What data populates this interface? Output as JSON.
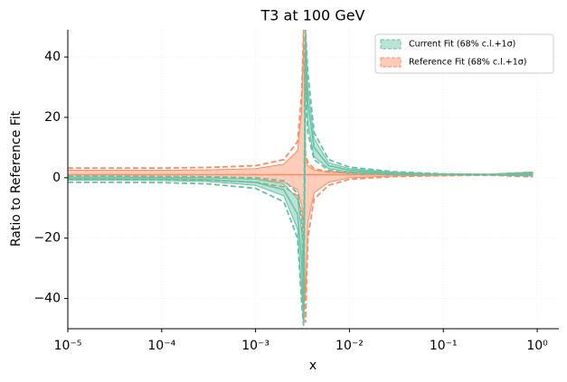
{
  "chart_data": {
    "type": "band-line",
    "title": "T3 at 100 GeV",
    "x_label": "x",
    "y_label": "Ratio to Reference Fit",
    "log_x": true,
    "grid": true,
    "legend": "upper right",
    "x": [
      1e-05,
      3e-05,
      0.0001,
      0.0003,
      0.001,
      0.002,
      0.0028,
      0.0031,
      0.00325,
      0.0034,
      0.0036,
      0.0042,
      0.006,
      0.01,
      0.03,
      0.1,
      0.3,
      0.9
    ],
    "xlim": [
      1e-05,
      1.7
    ],
    "xticks": [
      {
        "value": 1e-05,
        "label": "10⁻⁵"
      },
      {
        "value": 0.0001,
        "label": "10⁻⁴"
      },
      {
        "value": 0.001,
        "label": "10⁻³"
      },
      {
        "value": 0.01,
        "label": "10⁻²"
      },
      {
        "value": 0.1,
        "label": "10⁻¹"
      },
      {
        "value": 1,
        "label": "10⁰"
      }
    ],
    "ylim": [
      -50,
      49
    ],
    "yticks": [
      {
        "value": -40,
        "label": "−40"
      },
      {
        "value": -20,
        "label": "−20"
      },
      0,
      20,
      40
    ],
    "series": [
      {
        "name": "Reference Fit (68% c.l.+1σ)",
        "color": "#fc8d62",
        "central": [
          1,
          1,
          1,
          1,
          1,
          1,
          1,
          1,
          1,
          1,
          1,
          1,
          1,
          1,
          1,
          1,
          1,
          1
        ],
        "band_upper": [
          2.5,
          2.5,
          2.5,
          2.6,
          3,
          4.5,
          9,
          22,
          48,
          6,
          4,
          2.5,
          1.8,
          1.5,
          1.2,
          1.1,
          1.05,
          1.5
        ],
        "band_lower": [
          0.2,
          0.2,
          0.1,
          0,
          -0.5,
          -1.5,
          -4,
          -9,
          -15,
          -40,
          -15,
          -5,
          -1.5,
          0,
          0.6,
          0.8,
          0.9,
          0.5
        ],
        "sigma_upper": [
          3.2,
          3.2,
          3.2,
          3.4,
          4,
          6,
          12,
          28,
          49,
          8,
          5,
          3,
          2,
          1.7,
          1.3,
          1.15,
          1.1,
          1.8
        ],
        "sigma_lower": [
          -0.5,
          -0.5,
          -0.6,
          -0.8,
          -1.5,
          -3,
          -6,
          -12,
          -20,
          -48,
          -20,
          -7,
          -2.5,
          -0.5,
          0.4,
          0.7,
          0.85,
          0.3
        ]
      },
      {
        "name": "Current Fit (68% c.l.+1σ)",
        "color": "#66c2a5",
        "central": [
          -0.3,
          -0.3,
          -0.4,
          -0.6,
          -1.5,
          -4,
          -12,
          -28,
          -48,
          45,
          25,
          10,
          4,
          2.5,
          1.5,
          1.15,
          1.05,
          1.2
        ],
        "band_upper": [
          0.2,
          0.2,
          0.1,
          0,
          -0.5,
          -2,
          -7,
          -18,
          -35,
          49,
          30,
          13,
          5,
          3,
          1.8,
          1.2,
          1.1,
          1.6
        ],
        "band_lower": [
          -0.8,
          -0.8,
          -0.9,
          -1.2,
          -2.5,
          -6,
          -17,
          -38,
          -49,
          35,
          18,
          7,
          3,
          2,
          1.2,
          1.1,
          1.0,
          0.8
        ],
        "sigma_upper": [
          0.5,
          0.5,
          0.4,
          0.3,
          0,
          -1,
          -5,
          -14,
          -30,
          49,
          35,
          15,
          6,
          3.5,
          2,
          1.3,
          1.15,
          1.8
        ],
        "sigma_lower": [
          -1.5,
          -1.5,
          -1.6,
          -2,
          -3.5,
          -8,
          -20,
          -42,
          -49,
          30,
          15,
          6,
          2.5,
          1.5,
          1.0,
          1.0,
          0.95,
          0.6
        ]
      }
    ]
  }
}
